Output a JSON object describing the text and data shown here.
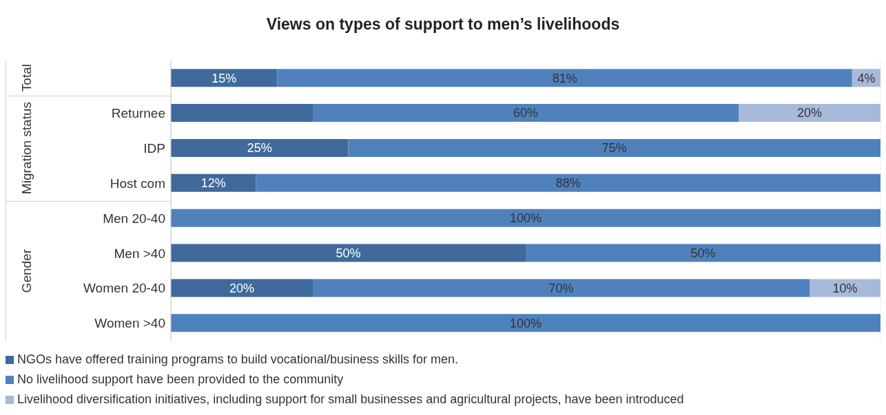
{
  "chart_data": {
    "type": "bar",
    "title": "Views on types of support to men’s livelihoods",
    "orientation": "horizontal",
    "stacked": true,
    "categories": [
      null,
      "Returnee",
      "IDP",
      "Host com",
      "Men 20-40",
      "Men >40",
      "Women 20-40",
      "Women >40"
    ],
    "series": [
      {
        "name": "NGOs have offered training programs to build vocational/business skills for men.",
        "color": "#3f6a9b",
        "values": [
          15,
          20,
          25,
          12,
          0,
          50,
          20,
          0
        ],
        "value_labels": [
          "15%",
          null,
          "25%",
          "12%",
          null,
          "50%",
          "20%",
          null
        ]
      },
      {
        "name": "No livelihood support have been provided to the community",
        "color": "#4f81bd",
        "values": [
          81,
          60,
          75,
          88,
          100,
          50,
          70,
          100
        ],
        "value_labels": [
          "81%",
          "60%",
          "75%",
          "88%",
          "100%",
          "50%",
          "70%",
          "100%"
        ]
      },
      {
        "name": "Livelihood diversification initiatives, including support for small businesses and agricultural projects, have been introduced",
        "color": "#a8b9d9",
        "values": [
          4,
          20,
          0,
          0,
          0,
          0,
          10,
          0
        ],
        "value_labels": [
          "4%",
          "20%",
          null,
          null,
          null,
          null,
          "10%",
          null
        ]
      }
    ],
    "xlim": [
      0,
      100
    ],
    "tick_labels": "y",
    "grid": "x",
    "legend": "bottom",
    "annotations": [
      "Total",
      "Migration status",
      "Gender"
    ]
  }
}
